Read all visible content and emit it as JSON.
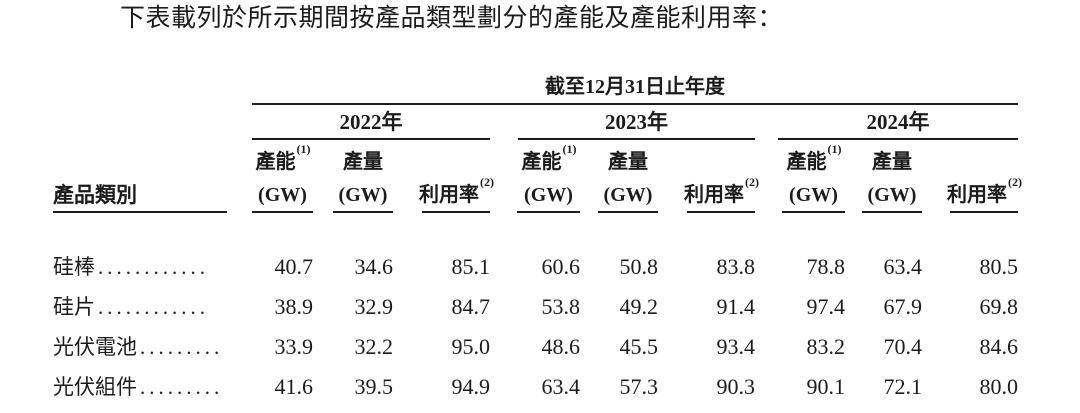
{
  "page": {
    "background": "#ffffff",
    "text_color": "#1c1c1c",
    "rule_color": "#1c1c1c"
  },
  "title": "下表載列於所示期間按產品類型劃分的產能及產能利用率：",
  "table": {
    "period_header": "截至12月31日止年度",
    "row_header": "產品類別",
    "years": [
      "2022年",
      "2023年",
      "2024年"
    ],
    "col_headers": {
      "capacity": "產能",
      "capacity_footnote": "(1)",
      "capacity_unit": "(GW)",
      "output": "產量",
      "output_unit": "(GW)",
      "utilization": "利用率",
      "utilization_footnote": "(2)"
    },
    "rows": [
      {
        "label": "硅棒",
        "leader": "............",
        "values": [
          "40.7",
          "34.6",
          "85.1",
          "60.6",
          "50.8",
          "83.8",
          "78.8",
          "63.4",
          "80.5"
        ]
      },
      {
        "label": "硅片",
        "leader": "............",
        "values": [
          "38.9",
          "32.9",
          "84.7",
          "53.8",
          "49.2",
          "91.4",
          "97.4",
          "67.9",
          "69.8"
        ]
      },
      {
        "label": "光伏電池",
        "leader": ".........",
        "values": [
          "33.9",
          "32.2",
          "95.0",
          "48.6",
          "45.5",
          "93.4",
          "83.2",
          "70.4",
          "84.6"
        ]
      },
      {
        "label": "光伏組件",
        "leader": ".........",
        "values": [
          "41.6",
          "39.5",
          "94.9",
          "63.4",
          "57.3",
          "90.3",
          "90.1",
          "72.1",
          "80.0"
        ]
      }
    ]
  }
}
